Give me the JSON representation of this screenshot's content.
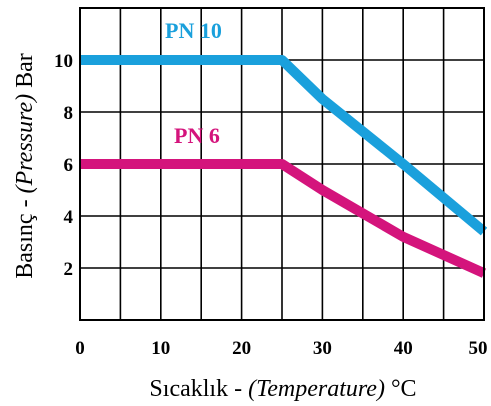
{
  "chart_data": {
    "type": "line",
    "xlabel": "Sıcaklık - (Temperature) °C",
    "xlabel_parts": {
      "prefix": "Sıcaklık - ",
      "emph": "(Temperature)",
      "suffix": " °C"
    },
    "ylabel": "Basınç - (Pressure) Bar",
    "ylabel_parts": {
      "prefix": "Basınç - ",
      "emph": "(Pressure)",
      "suffix": " Bar"
    },
    "xlim": [
      0,
      50
    ],
    "ylim": [
      0,
      12
    ],
    "x_ticks": [
      0,
      10,
      20,
      30,
      40,
      50
    ],
    "x_tick_labels": [
      "0",
      "10",
      "20",
      "30",
      "40",
      "50"
    ],
    "y_ticks": [
      2,
      4,
      6,
      8,
      10
    ],
    "y_tick_labels": [
      "2",
      "4",
      "6",
      "8",
      "10"
    ],
    "grid": true,
    "series": [
      {
        "name": "PN 10",
        "color": "#1aa0dc",
        "x": [
          0,
          25,
          30,
          40,
          50
        ],
        "y": [
          10,
          10,
          8.5,
          6,
          3.4
        ]
      },
      {
        "name": "PN 6",
        "color": "#d4147c",
        "x": [
          0,
          25,
          30,
          40,
          50
        ],
        "y": [
          6,
          6,
          5,
          3.2,
          1.8
        ]
      }
    ]
  }
}
